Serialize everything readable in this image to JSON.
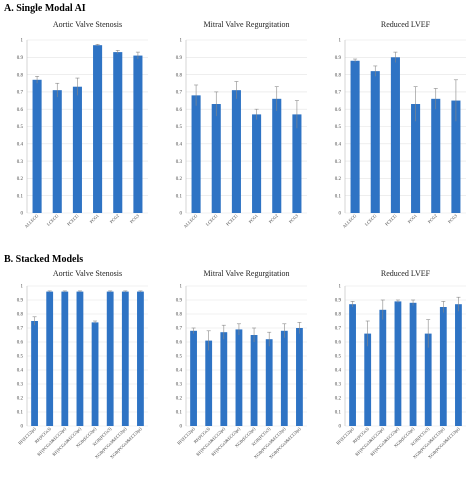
{
  "sections": [
    {
      "label": "A. Single Modal AI"
    },
    {
      "label": "B. Stacked Models"
    }
  ],
  "colors": {
    "bar": "#2e73c4",
    "error": "#888888",
    "grid": "#e3e3e3"
  },
  "chart_data": [
    {
      "type": "bar",
      "section": 0,
      "title": "Aortic Valve Stenosis",
      "categories": [
        "ALLECG",
        "LCECG",
        "PCECG",
        "PCG1",
        "PCG2",
        "PCG3"
      ],
      "values": [
        0.77,
        0.71,
        0.73,
        0.97,
        0.93,
        0.91
      ],
      "errors": [
        0.02,
        0.04,
        0.05,
        0.005,
        0.01,
        0.02
      ],
      "ylim": [
        0,
        1
      ],
      "yticks": [
        "0",
        "0.1",
        "0.2",
        "0.3",
        "0.4",
        "0.5",
        "0.6",
        "0.7",
        "0.8",
        "0.9",
        "1"
      ],
      "grid": true
    },
    {
      "type": "bar",
      "section": 0,
      "title": "Mitral Valve Regurgitation",
      "categories": [
        "ALLECG",
        "LCECG",
        "PCECG",
        "PCG1",
        "PCG2",
        "PCG3"
      ],
      "values": [
        0.68,
        0.63,
        0.71,
        0.57,
        0.66,
        0.57
      ],
      "errors": [
        0.06,
        0.07,
        0.05,
        0.03,
        0.07,
        0.08
      ],
      "ylim": [
        0,
        1
      ],
      "yticks": [
        "0",
        "0.1",
        "0.2",
        "0.3",
        "0.4",
        "0.5",
        "0.6",
        "0.7",
        "0.8",
        "0.9",
        "1"
      ],
      "grid": true
    },
    {
      "type": "bar",
      "section": 0,
      "title": "Reduced LVEF",
      "categories": [
        "ALLECG",
        "LCECG",
        "PCECG",
        "PCG1",
        "PCG2",
        "PCG3"
      ],
      "values": [
        0.88,
        0.82,
        0.9,
        0.63,
        0.66,
        0.65
      ],
      "errors": [
        0.01,
        0.03,
        0.03,
        0.1,
        0.06,
        0.12
      ],
      "ylim": [
        0,
        1
      ],
      "yticks": [
        "0",
        "0.1",
        "0.2",
        "0.3",
        "0.4",
        "0.5",
        "0.6",
        "0.7",
        "0.8",
        "0.9",
        "1"
      ],
      "grid": true
    },
    {
      "type": "bar",
      "section": 1,
      "title": "Aortic Valve Stenosis",
      "categories": [
        "RF(ECG2pt)",
        "RF(PCGs3)",
        "RF(PCGs3&ECG2pt)",
        "RF(PCGs3&ECG3pt)",
        "XGB(ECG2pt)",
        "XGB(PCGs3)",
        "XGB(PCGs3&ECG2pt)",
        "XGB(PCGs3&ECG3pt)"
      ],
      "values": [
        0.75,
        0.96,
        0.96,
        0.96,
        0.74,
        0.96,
        0.96,
        0.96
      ],
      "errors": [
        0.03,
        0.005,
        0.005,
        0.005,
        0.01,
        0.005,
        0.005,
        0.005
      ],
      "ylim": [
        0,
        1
      ],
      "yticks": [
        "0",
        "0.1",
        "0.2",
        "0.3",
        "0.4",
        "0.5",
        "0.6",
        "0.7",
        "0.8",
        "0.9",
        "1"
      ],
      "grid": true
    },
    {
      "type": "bar",
      "section": 1,
      "title": "Mitral Valve Regurgitation",
      "categories": [
        "RF(ECG2pt)",
        "RF(PCGs3)",
        "RF(PCGs3&ECG2pt)",
        "RF(PCGs3&ECG3pt)",
        "XGB(ECG2pt)",
        "XGB(PCGs3)",
        "XGB(PCGs3&ECG2pt)",
        "XGB(PCGs3&ECG3pt)"
      ],
      "values": [
        0.68,
        0.61,
        0.67,
        0.69,
        0.65,
        0.62,
        0.68,
        0.7
      ],
      "errors": [
        0.02,
        0.07,
        0.05,
        0.04,
        0.05,
        0.05,
        0.05,
        0.04
      ],
      "ylim": [
        0,
        1
      ],
      "yticks": [
        "0",
        "0.1",
        "0.2",
        "0.3",
        "0.4",
        "0.5",
        "0.6",
        "0.7",
        "0.8",
        "0.9",
        "1"
      ],
      "grid": true
    },
    {
      "type": "bar",
      "section": 1,
      "title": "Reduced LVEF",
      "categories": [
        "RF(ECG2pt)",
        "RF(PCGs3)",
        "RF(PCGs3&ECG2pt)",
        "RF(PCGs3&ECG3pt)",
        "XGB(ECG2pt)",
        "XGB(PCGs3)",
        "XGB(PCGs3&ECG2pt)",
        "XGB(PCGs3&ECG3pt)"
      ],
      "values": [
        0.87,
        0.66,
        0.83,
        0.89,
        0.88,
        0.66,
        0.85,
        0.87
      ],
      "errors": [
        0.02,
        0.09,
        0.07,
        0.01,
        0.02,
        0.1,
        0.04,
        0.05
      ],
      "ylim": [
        0,
        1
      ],
      "yticks": [
        "0",
        "0.1",
        "0.2",
        "0.3",
        "0.4",
        "0.5",
        "0.6",
        "0.7",
        "0.8",
        "0.9",
        "1"
      ],
      "grid": true
    }
  ]
}
